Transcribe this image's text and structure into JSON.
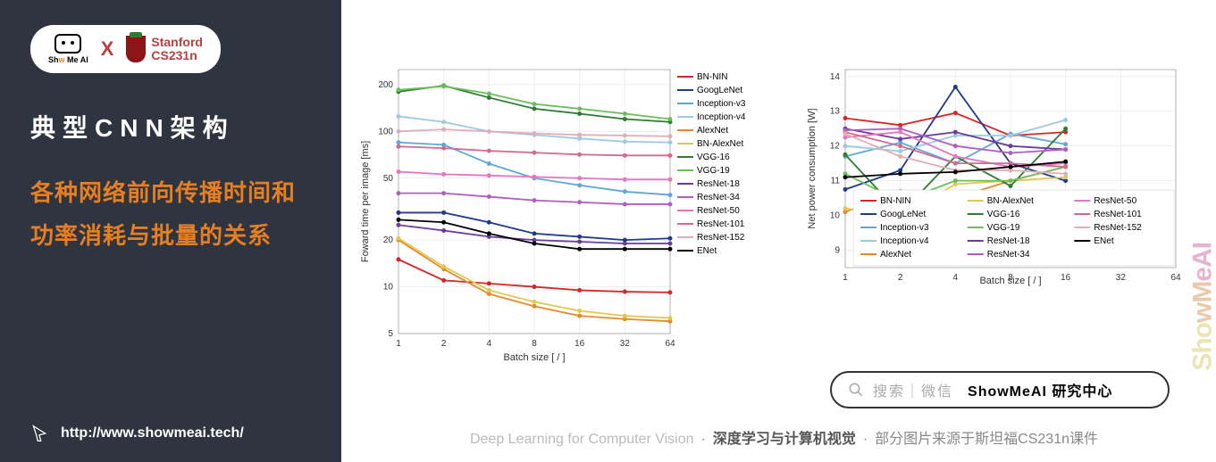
{
  "sidebar": {
    "badge": {
      "ai_text_a": "Sh",
      "ai_text_b": "w",
      "ai_text_c": " Me AI",
      "x": "X",
      "stanford_a": "Stanford",
      "stanford_b": "CS231n"
    },
    "heading": "典型CNN架构",
    "description": "各种网络前向传播时间和功率消耗与批量的关系",
    "link_url": "http://www.showmeai.tech/"
  },
  "watermark": {
    "a": "Sho",
    "b": "wM",
    "c": "eAI"
  },
  "search": {
    "hint": "搜索｜微信",
    "brand": "ShowMeAI 研究中心"
  },
  "footer": {
    "a": "Deep Learning for Computer Vision",
    "b": "深度学习与计算机视觉",
    "c": "部分图片来源于斯坦福CS231n课件"
  },
  "chart_shared": {
    "x_values": [
      1,
      2,
      4,
      8,
      16,
      32,
      64
    ],
    "x_label": "Batch size [ / ]",
    "background_color": "#ffffff",
    "grid_color": "#e0e0e0",
    "axis_color": "#333333",
    "tick_fontsize": 10,
    "label_fontsize": 11,
    "line_width": 1.8,
    "series": {
      "BN-NIN": {
        "color": "#d62728"
      },
      "GoogLeNet": {
        "color": "#1f3b8a"
      },
      "Inception-v3": {
        "color": "#5fa7d8"
      },
      "Inception-v4": {
        "color": "#9ec9e2"
      },
      "AlexNet": {
        "color": "#e68a2e"
      },
      "BN-AlexNet": {
        "color": "#e0c850"
      },
      "VGG-16": {
        "color": "#2e7d32"
      },
      "VGG-19": {
        "color": "#6bbf59"
      },
      "ResNet-18": {
        "color": "#6a3d9a"
      },
      "ResNet-34": {
        "color": "#b05fbf"
      },
      "ResNet-50": {
        "color": "#e377c2"
      },
      "ResNet-101": {
        "color": "#d4698f"
      },
      "ResNet-152": {
        "color": "#e0aeb8"
      },
      "ENet": {
        "color": "#000000"
      }
    }
  },
  "chart1": {
    "type": "line",
    "y_label": "Foward time per image [ms]",
    "y_scale": "log",
    "y_ticks": [
      5,
      10,
      20,
      50,
      100,
      200
    ],
    "ylim": [
      5,
      250
    ],
    "x_ticks": [
      1,
      2,
      4,
      8,
      16,
      32,
      64
    ],
    "legend_position": "right",
    "data": {
      "BN-NIN": [
        15,
        11,
        10.5,
        10,
        9.5,
        9.3,
        9.2
      ],
      "GoogLeNet": [
        30,
        30,
        26,
        22,
        21,
        20,
        20.5
      ],
      "Inception-v3": [
        85,
        82,
        62,
        50,
        45,
        41,
        39
      ],
      "Inception-v4": [
        125,
        115,
        100,
        95,
        90,
        86,
        85
      ],
      "AlexNet": [
        20,
        13,
        9,
        7.5,
        6.5,
        6.2,
        6
      ],
      "BN-AlexNet": [
        20.5,
        13.5,
        9.5,
        8,
        7,
        6.5,
        6.3
      ],
      "VGG-16": [
        180,
        197,
        165,
        140,
        130,
        120,
        115
      ],
      "VGG-19": [
        185,
        195,
        175,
        150,
        140,
        130,
        120
      ],
      "ResNet-18": [
        25,
        23,
        21,
        20,
        19.5,
        19,
        19
      ],
      "ResNet-34": [
        40,
        40,
        38,
        36,
        35,
        34,
        34
      ],
      "ResNet-50": [
        55,
        53,
        52,
        51,
        50,
        49,
        49
      ],
      "ResNet-101": [
        80,
        78,
        75,
        73,
        71,
        70,
        70
      ],
      "ResNet-152": [
        100,
        103,
        100,
        97,
        95,
        94,
        93
      ],
      "ENet": [
        27,
        26,
        22,
        19,
        17.5,
        17.5,
        17.5
      ]
    }
  },
  "chart2": {
    "type": "line",
    "y_label": "Net power consumption [W]",
    "y_scale": "linear",
    "y_ticks": [
      9,
      10,
      11,
      12,
      13,
      14
    ],
    "ylim": [
      8.5,
      14.2
    ],
    "x_ticks": [
      1,
      2,
      4,
      8,
      16,
      32,
      64
    ],
    "legend_position": "bottom-inside",
    "legend_x_truncate": 16,
    "data": {
      "BN-NIN": [
        12.8,
        12.6,
        12.95,
        12.3,
        12.4,
        12.55,
        12.4
      ],
      "GoogLeNet": [
        10.75,
        11.3,
        13.7,
        11.5,
        11.0,
        10.9,
        11.0
      ],
      "Inception-v3": [
        11.7,
        12.1,
        11.5,
        12.35,
        12.05,
        12.5,
        12.6
      ],
      "Inception-v4": [
        12.0,
        11.85,
        12.3,
        12.3,
        12.75,
        12.15,
        12.15
      ],
      "AlexNet": [
        10.1,
        10.7,
        10.5,
        11.0,
        11.4,
        11.6,
        11.5
      ],
      "BN-AlexNet": [
        10.2,
        10.0,
        10.9,
        11.0,
        11.1,
        11.2,
        11.35
      ],
      "VGG-16": [
        11.75,
        10.05,
        11.7,
        10.85,
        12.5,
        12.3,
        12.4
      ],
      "VGG-19": [
        11.2,
        10.4,
        11.0,
        11.0,
        11.4,
        11.5,
        11.6
      ],
      "ResNet-18": [
        12.5,
        12.2,
        12.4,
        12.0,
        11.9,
        11.8,
        11.8
      ],
      "ResNet-34": [
        12.45,
        12.5,
        12.0,
        11.8,
        11.9,
        11.7,
        11.7
      ],
      "ResNet-50": [
        12.25,
        12.4,
        11.7,
        11.4,
        11.5,
        11.3,
        11.4
      ],
      "ResNet-101": [
        12.4,
        12.0,
        11.5,
        11.5,
        11.4,
        11.3,
        11.3
      ],
      "ResNet-152": [
        12.35,
        11.7,
        11.3,
        11.3,
        11.2,
        11.4,
        11.4
      ],
      "ENet": [
        11.1,
        11.2,
        11.25,
        11.4,
        11.55,
        11.6,
        11.6
      ]
    }
  }
}
